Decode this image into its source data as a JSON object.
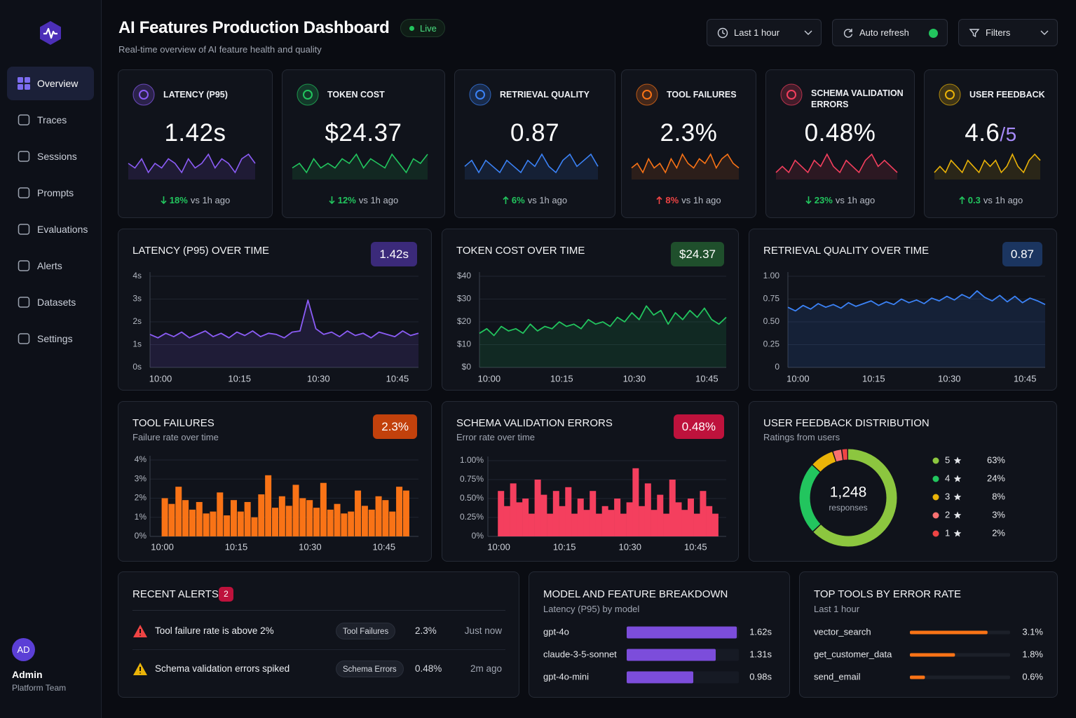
{
  "sidebar": {
    "nav": [
      "Overview",
      "Traces",
      "Sessions",
      "Prompts",
      "Evaluations",
      "Alerts",
      "Datasets",
      "Settings"
    ],
    "active": 0,
    "user": {
      "initials": "AD",
      "name": "Admin",
      "team": "Platform Team"
    }
  },
  "header": {
    "title": "AI Features Production Dashboard",
    "status": "Live",
    "subtitle": "Real-time overview of AI feature health and quality",
    "controls": [
      "Last 1 hour",
      "Auto refresh",
      "Filters"
    ]
  },
  "kpis": [
    {
      "label": "LATENCY (P95)",
      "value": "1.42s",
      "change": "18%",
      "direction": "down",
      "change_color": "#22c55e",
      "comparison": "vs 1h ago",
      "color": "#8b5cf6",
      "sparkline": [
        5,
        4,
        6,
        3,
        5,
        4,
        6,
        5,
        3,
        6,
        4,
        5,
        7,
        4,
        6,
        5,
        3,
        6,
        7,
        5
      ]
    },
    {
      "label": "TOKEN COST",
      "value": "$24.37",
      "change": "12%",
      "direction": "down",
      "change_color": "#22c55e",
      "comparison": "vs 1h ago",
      "color": "#22c55e",
      "sparkline": [
        4,
        5,
        3,
        6,
        4,
        5,
        4,
        6,
        5,
        7,
        4,
        6,
        5,
        4,
        7,
        5,
        3,
        6,
        5,
        7
      ]
    },
    {
      "label": "RETRIEVAL QUALITY",
      "value": "0.87",
      "change": "6%",
      "direction": "up",
      "change_color": "#22c55e",
      "comparison": "vs 1h ago",
      "color": "#3b82f6",
      "sparkline": [
        5,
        6,
        4,
        6,
        5,
        4,
        6,
        5,
        4,
        6,
        5,
        7,
        5,
        4,
        6,
        7,
        5,
        6,
        7,
        5
      ]
    },
    {
      "label": "TOOL FAILURES",
      "value": "2.3%",
      "change": "8%",
      "direction": "up",
      "change_color": "#ef4444",
      "comparison": "vs 1h ago",
      "color": "#f97316",
      "sparkline": [
        4,
        5,
        3,
        6,
        4,
        5,
        3,
        6,
        4,
        7,
        5,
        4,
        6,
        5,
        7,
        4,
        6,
        7,
        5,
        4
      ]
    },
    {
      "label": "SCHEMA VALIDATION ERRORS",
      "value": "0.48%",
      "change": "23%",
      "direction": "down",
      "change_color": "#22c55e",
      "comparison": "vs 1h ago",
      "color": "#f43f5e",
      "sparkline": [
        4,
        5,
        4,
        6,
        5,
        4,
        6,
        5,
        7,
        5,
        4,
        6,
        5,
        4,
        6,
        7,
        5,
        6,
        5,
        4
      ]
    },
    {
      "label": "USER FEEDBACK",
      "value": "4.6",
      "suffix": "/5",
      "change": "0.3",
      "direction": "up",
      "change_color": "#22c55e",
      "comparison": "vs 1h ago",
      "color": "#eab308",
      "sparkline": [
        4,
        5,
        4,
        6,
        5,
        4,
        6,
        5,
        4,
        6,
        5,
        6,
        4,
        5,
        7,
        5,
        4,
        6,
        7,
        6
      ]
    }
  ],
  "chart_data": [
    {
      "type": "line",
      "title": "LATENCY (P95) OVER TIME",
      "badge": "1.42s",
      "badge_color": "#3b2a7a",
      "color": "#8b5cf6",
      "x": [
        -2,
        -0.5,
        1,
        2.5,
        4,
        5.5,
        7,
        8.5,
        10,
        11.5,
        13,
        14.5,
        16,
        17.5,
        19,
        20.5,
        22,
        23.5,
        25,
        26.5,
        28,
        29.5,
        31,
        32.5,
        34,
        35.5,
        37,
        38.5,
        40,
        41.5,
        43,
        44.5,
        46,
        47.5,
        49
      ],
      "values": [
        1.45,
        1.3,
        1.5,
        1.35,
        1.55,
        1.3,
        1.45,
        1.6,
        1.35,
        1.5,
        1.3,
        1.55,
        1.4,
        1.6,
        1.35,
        1.5,
        1.45,
        1.3,
        1.55,
        1.6,
        2.95,
        1.7,
        1.45,
        1.55,
        1.35,
        1.6,
        1.4,
        1.5,
        1.3,
        1.55,
        1.45,
        1.35,
        1.6,
        1.4,
        1.5
      ],
      "xlim": [
        -2,
        49
      ],
      "xticks": [
        {
          "value": 0,
          "label": "10:00"
        },
        {
          "value": 15,
          "label": "10:15"
        },
        {
          "value": 30,
          "label": "10:30"
        },
        {
          "value": 45,
          "label": "10:45"
        }
      ],
      "ylim": [
        0,
        4
      ],
      "yticks": [
        {
          "value": 0,
          "label": "0s"
        },
        {
          "value": 1,
          "label": "1s"
        },
        {
          "value": 2,
          "label": "2s"
        },
        {
          "value": 3,
          "label": "3s"
        },
        {
          "value": 4,
          "label": "4s"
        }
      ],
      "grid": true
    },
    {
      "type": "line",
      "title": "TOKEN COST OVER TIME",
      "badge": "$24.37",
      "badge_color": "#1f4f2c",
      "color": "#22c55e",
      "x": [
        -2,
        -0.5,
        1,
        2.5,
        4,
        5.5,
        7,
        8.5,
        10,
        11.5,
        13,
        14.5,
        16,
        17.5,
        19,
        20.5,
        22,
        23.5,
        25,
        26.5,
        28,
        29.5,
        31,
        32.5,
        34,
        35.5,
        37,
        38.5,
        40,
        41.5,
        43,
        44.5,
        46,
        47.5,
        49
      ],
      "values": [
        15,
        17,
        14,
        18,
        16,
        17,
        15,
        19,
        16,
        18,
        17,
        20,
        18,
        19,
        17,
        21,
        19,
        20,
        18,
        22,
        20,
        24,
        21,
        27,
        23,
        25,
        19,
        24,
        21,
        25,
        22,
        26,
        21,
        19,
        22
      ],
      "xlim": [
        -2,
        49
      ],
      "xticks": [
        {
          "value": 0,
          "label": "10:00"
        },
        {
          "value": 15,
          "label": "10:15"
        },
        {
          "value": 30,
          "label": "10:30"
        },
        {
          "value": 45,
          "label": "10:45"
        }
      ],
      "ylim": [
        0,
        40
      ],
      "yticks": [
        {
          "value": 0,
          "label": "$0"
        },
        {
          "value": 10,
          "label": "$10"
        },
        {
          "value": 20,
          "label": "$20"
        },
        {
          "value": 30,
          "label": "$30"
        },
        {
          "value": 40,
          "label": "$40"
        }
      ],
      "grid": true
    },
    {
      "type": "line",
      "title": "RETRIEVAL QUALITY OVER TIME",
      "badge": "0.87",
      "badge_color": "#1b3560",
      "color": "#3b82f6",
      "x": [
        -2,
        -0.5,
        1,
        2.5,
        4,
        5.5,
        7,
        8.5,
        10,
        11.5,
        13,
        14.5,
        16,
        17.5,
        19,
        20.5,
        22,
        23.5,
        25,
        26.5,
        28,
        29.5,
        31,
        32.5,
        34,
        35.5,
        37,
        38.5,
        40,
        41.5,
        43,
        44.5,
        46,
        47.5,
        49
      ],
      "values": [
        0.66,
        0.62,
        0.68,
        0.64,
        0.7,
        0.66,
        0.69,
        0.65,
        0.71,
        0.67,
        0.7,
        0.73,
        0.68,
        0.72,
        0.69,
        0.75,
        0.71,
        0.74,
        0.7,
        0.76,
        0.73,
        0.78,
        0.74,
        0.8,
        0.76,
        0.84,
        0.77,
        0.73,
        0.79,
        0.72,
        0.78,
        0.71,
        0.76,
        0.73,
        0.69
      ],
      "xlim": [
        -2,
        49
      ],
      "xticks": [
        {
          "value": 0,
          "label": "10:00"
        },
        {
          "value": 15,
          "label": "10:15"
        },
        {
          "value": 30,
          "label": "10:30"
        },
        {
          "value": 45,
          "label": "10:45"
        }
      ],
      "ylim": [
        0,
        1
      ],
      "yticks": [
        0,
        0.25,
        {
          "value": 0.5,
          "label": "0.50"
        },
        0.75,
        {
          "value": 1,
          "label": "1.00"
        }
      ],
      "grid": true
    },
    {
      "type": "bar",
      "title": "TOOL FAILURES",
      "subtitle": "Failure rate over time",
      "badge": "2.3%",
      "badge_color": "#c2410c",
      "color": "#f97316",
      "x": [
        0.5,
        1.9,
        3.3,
        4.7,
        6.1,
        7.5,
        8.9,
        10.3,
        11.7,
        13.1,
        14.5,
        15.9,
        17.3,
        18.7,
        20.1,
        21.5,
        22.9,
        24.3,
        25.7,
        27.1,
        28.5,
        29.9,
        31.3,
        32.7,
        34.1,
        35.5,
        36.9,
        38.3,
        39.7,
        41.1,
        42.5,
        43.9,
        45.3,
        46.7,
        48.1,
        49.5
      ],
      "values": [
        2.0,
        1.7,
        2.6,
        1.9,
        1.4,
        1.8,
        1.2,
        1.3,
        2.3,
        1.1,
        1.9,
        1.3,
        1.8,
        1.0,
        2.2,
        3.2,
        1.5,
        2.1,
        1.6,
        2.7,
        2.0,
        1.9,
        1.5,
        2.8,
        1.4,
        1.7,
        1.2,
        1.3,
        2.4,
        1.6,
        1.4,
        2.1,
        1.9,
        1.3,
        2.6,
        2.4
      ],
      "xlim": [
        -2.5,
        52
      ],
      "xticks": [
        {
          "value": 0,
          "label": "10:00"
        },
        {
          "value": 15,
          "label": "10:15"
        },
        {
          "value": 30,
          "label": "10:30"
        },
        {
          "value": 45,
          "label": "10:45"
        }
      ],
      "ylim": [
        0,
        4
      ],
      "yticks": [
        {
          "value": 0,
          "label": "0%"
        },
        {
          "value": 1,
          "label": "1%"
        },
        {
          "value": 2,
          "label": "2%"
        },
        {
          "value": 3,
          "label": "3%"
        },
        {
          "value": 4,
          "label": "4%"
        }
      ],
      "grid": true
    },
    {
      "type": "bar",
      "title": "SCHEMA VALIDATION ERRORS",
      "subtitle": "Error rate over time",
      "badge": "0.48%",
      "badge_color": "#be123c",
      "color": "#f43f5e",
      "x": [
        0.5,
        1.9,
        3.3,
        4.7,
        6.1,
        7.5,
        8.9,
        10.3,
        11.7,
        13.1,
        14.5,
        15.9,
        17.3,
        18.7,
        20.1,
        21.5,
        22.9,
        24.3,
        25.7,
        27.1,
        28.5,
        29.9,
        31.3,
        32.7,
        34.1,
        35.5,
        36.9,
        38.3,
        39.7,
        41.1,
        42.5,
        43.9,
        45.3,
        46.7,
        48.1,
        49.5
      ],
      "values": [
        0.6,
        0.4,
        0.7,
        0.45,
        0.5,
        0.3,
        0.75,
        0.55,
        0.3,
        0.6,
        0.4,
        0.65,
        0.3,
        0.5,
        0.35,
        0.6,
        0.3,
        0.4,
        0.35,
        0.5,
        0.3,
        0.45,
        0.9,
        0.4,
        0.7,
        0.35,
        0.55,
        0.3,
        0.75,
        0.45,
        0.35,
        0.5,
        0.3,
        0.6,
        0.4,
        0.3
      ],
      "xlim": [
        -2.5,
        52
      ],
      "xticks": [
        {
          "value": 0,
          "label": "10:00"
        },
        {
          "value": 15,
          "label": "10:15"
        },
        {
          "value": 30,
          "label": "10:30"
        },
        {
          "value": 45,
          "label": "10:45"
        }
      ],
      "ylim": [
        0,
        1
      ],
      "yticks": [
        {
          "value": 0,
          "label": "0%"
        },
        {
          "value": 0.25,
          "label": "0.25%"
        },
        {
          "value": 0.5,
          "label": "0.50%"
        },
        {
          "value": 0.75,
          "label": "0.75%"
        },
        {
          "value": 1,
          "label": "1.00%"
        }
      ],
      "grid": true
    },
    {
      "type": "donut",
      "title": "USER FEEDBACK DISTRIBUTION",
      "subtitle": "Ratings from users",
      "categories": [
        "5",
        "4",
        "3",
        "2",
        "1"
      ],
      "values": [
        63,
        24,
        8,
        3,
        2
      ],
      "value_labels": [
        "63%",
        "24%",
        "8%",
        "3%",
        "2%"
      ],
      "colors": [
        "#8cc63f",
        "#22c55e",
        "#eab308",
        "#f87171",
        "#ef4444"
      ],
      "total": {
        "value": 1248,
        "label": "1,248"
      },
      "total_caption": "responses"
    }
  ],
  "alerts": {
    "title": "RECENT ALERTS",
    "count": 2,
    "rows": [
      {
        "severity": "error",
        "message": "Tool failure rate is above 2%",
        "tag": "Tool Failures",
        "value": "2.3%",
        "time": "Just now"
      },
      {
        "severity": "warning",
        "message": "Schema validation errors spiked",
        "tag": "Schema Errors",
        "value": "0.48%",
        "time": "2m ago"
      }
    ]
  },
  "model_breakdown": {
    "title": "MODEL AND FEATURE BREAKDOWN",
    "subtitle": "Latency (P95) by model",
    "color": "#7c4ddb",
    "xlim": [
      0,
      1.65
    ],
    "categories": [
      "gpt-4o",
      "claude-3-5-sonnet",
      "gpt-4o-mini"
    ],
    "values": [
      1.62,
      1.31,
      0.98
    ],
    "value_labels": [
      "1.62s",
      "1.31s",
      "0.98s"
    ]
  },
  "top_tools": {
    "title": "TOP TOOLS BY ERROR RATE",
    "subtitle": "Last 1 hour",
    "color": "#f97316",
    "xlim": [
      0,
      4
    ],
    "categories": [
      "vector_search",
      "get_customer_data",
      "send_email"
    ],
    "values": [
      3.1,
      1.8,
      0.6
    ],
    "value_labels": [
      "3.1%",
      "1.8%",
      "0.6%"
    ]
  }
}
